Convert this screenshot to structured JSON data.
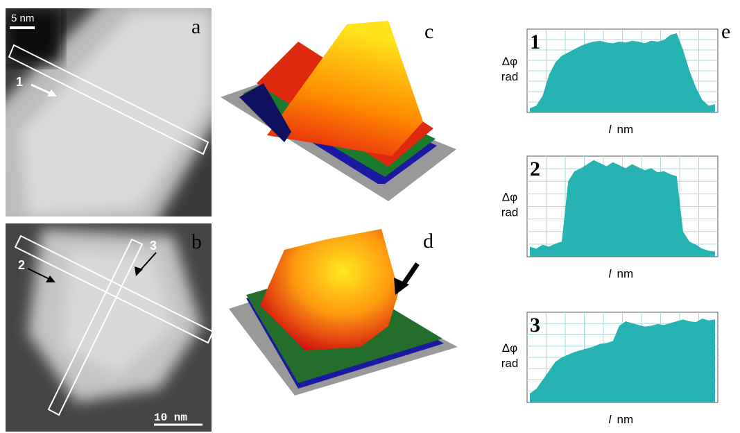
{
  "panels": {
    "a": {
      "label": "a",
      "scale_bar": "5 nm",
      "marker": "1"
    },
    "b": {
      "label": "b",
      "scale_bar": "10 nm",
      "marker_2": "2",
      "marker_3": "3"
    },
    "c": {
      "label": "c"
    },
    "d": {
      "label": "d"
    },
    "e": {
      "label": "e"
    }
  },
  "profiles": [
    {
      "label": "1",
      "y_label_symbol": "Δφ",
      "y_label_unit": "rad",
      "x_label_var": "l",
      "x_label_unit": "nm",
      "ylim": [
        0,
        10
      ],
      "values": [
        0.5,
        0.8,
        2,
        4.5,
        6,
        6.8,
        7.2,
        7.6,
        8,
        8.3,
        8.5,
        8.6,
        8.4,
        8.3,
        8.5,
        8.4,
        8.6,
        8.5,
        8.3,
        8.6,
        8.5,
        8.7,
        9.3,
        9.5,
        7.5,
        5,
        3,
        1.5,
        0.8,
        1
      ]
    },
    {
      "label": "2",
      "y_label_symbol": "Δφ",
      "y_label_unit": "rad",
      "x_label_var": "l",
      "x_label_unit": "nm",
      "ylim": [
        0,
        10
      ],
      "values": [
        1,
        0.8,
        1.2,
        1,
        1.3,
        1.5,
        7.5,
        8.5,
        8.8,
        9.2,
        9.6,
        9.3,
        9,
        9.4,
        9.1,
        8.8,
        9.2,
        8.9,
        8.6,
        8.8,
        8.4,
        8.5,
        8.2,
        8,
        2.5,
        1.5,
        1.2,
        0.8,
        0.6,
        0.5
      ]
    },
    {
      "label": "3",
      "y_label_symbol": "Δφ",
      "y_label_unit": "rad",
      "x_label_var": "l",
      "x_label_unit": "nm",
      "ylim": [
        0,
        10
      ],
      "values": [
        1,
        1.5,
        2.5,
        3.5,
        4.5,
        5,
        5.3,
        5.6,
        5.8,
        6,
        6.2,
        6.5,
        6.6,
        6.8,
        8.5,
        9,
        8.8,
        8.6,
        8.4,
        8.5,
        8.7,
        8.6,
        8.8,
        9,
        9.2,
        9,
        8.9,
        9.3,
        9.1,
        9.2
      ]
    }
  ]
}
